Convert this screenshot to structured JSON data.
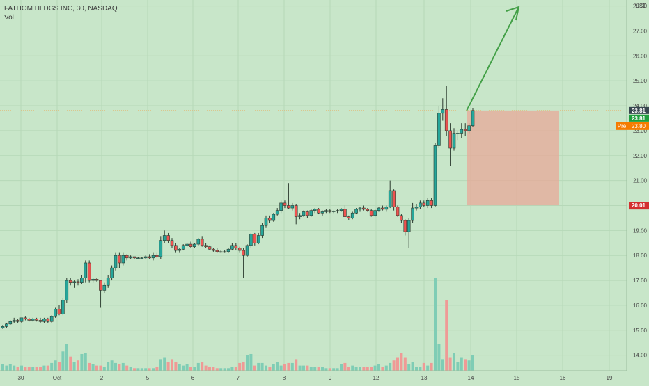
{
  "legend": {
    "title": "FATHOM HLDGS INC, 30, NASDAQ",
    "vol": "Vol"
  },
  "chart_data": {
    "type": "candlestick",
    "symbol": "FATHOM HLDGS INC",
    "interval": "30",
    "exchange": "NASDAQ",
    "currency": "USD",
    "y_ticks": [
      14.0,
      15.0,
      16.0,
      17.0,
      18.0,
      19.0,
      20.0,
      21.0,
      22.0,
      23.0,
      24.0,
      25.0,
      26.0,
      27.0,
      28.0
    ],
    "ylim": [
      13.6,
      28.1
    ],
    "x_ticks": [
      "30",
      "Oct",
      "2",
      "5",
      "6",
      "7",
      "8",
      "9",
      "12",
      "13",
      "14",
      "15",
      "16",
      "19"
    ],
    "current_price_label": "23.81",
    "current_price_label_2": "23.81",
    "pre_market_tag": "Pre",
    "pre_market_price": "23.80",
    "stop_price": "20.01",
    "position_box": {
      "top_price": 23.81,
      "bottom_price": 20.01,
      "start_bar": 123,
      "end_bar": 147
    },
    "arrow": {
      "from_bar": 123,
      "from_price": 23.81,
      "to_bar": 137,
      "to_price": 28.2
    },
    "candles": [
      [
        15.1,
        15.2,
        15.05,
        15.15,
        0.5
      ],
      [
        15.15,
        15.3,
        15.1,
        15.25,
        0.4
      ],
      [
        15.25,
        15.4,
        15.2,
        15.35,
        0.5
      ],
      [
        15.35,
        15.5,
        15.3,
        15.4,
        0.4
      ],
      [
        15.4,
        15.45,
        15.3,
        15.35,
        0.3
      ],
      [
        15.35,
        15.5,
        15.3,
        15.5,
        0.4
      ],
      [
        15.5,
        15.55,
        15.4,
        15.45,
        0.3
      ],
      [
        15.45,
        15.5,
        15.35,
        15.4,
        0.3
      ],
      [
        15.4,
        15.5,
        15.35,
        15.45,
        0.3
      ],
      [
        15.45,
        15.5,
        15.35,
        15.4,
        0.3
      ],
      [
        15.4,
        15.5,
        15.3,
        15.35,
        0.3
      ],
      [
        15.35,
        15.5,
        15.3,
        15.45,
        0.4
      ],
      [
        15.45,
        15.5,
        15.3,
        15.35,
        0.4
      ],
      [
        15.35,
        15.6,
        15.3,
        15.55,
        0.6
      ],
      [
        15.55,
        15.9,
        15.5,
        15.85,
        0.8
      ],
      [
        15.85,
        16.0,
        15.6,
        15.65,
        0.7
      ],
      [
        15.65,
        16.3,
        15.6,
        16.2,
        1.5
      ],
      [
        16.2,
        17.1,
        16.1,
        17.0,
        2.1
      ],
      [
        17.0,
        17.1,
        16.8,
        16.9,
        1.1
      ],
      [
        16.9,
        17.0,
        16.7,
        16.95,
        0.7
      ],
      [
        16.95,
        17.05,
        16.8,
        16.9,
        0.8
      ],
      [
        16.9,
        17.2,
        16.85,
        17.1,
        1.3
      ],
      [
        17.1,
        17.8,
        16.9,
        17.7,
        1.4
      ],
      [
        17.7,
        17.8,
        16.9,
        17.0,
        0.6
      ],
      [
        17.0,
        17.1,
        16.9,
        17.05,
        0.5
      ],
      [
        17.05,
        17.1,
        16.95,
        17.0,
        0.4
      ],
      [
        17.0,
        17.0,
        15.9,
        16.6,
        0.4
      ],
      [
        16.6,
        16.9,
        16.5,
        16.8,
        0.3
      ],
      [
        16.8,
        17.2,
        16.7,
        17.1,
        0.7
      ],
      [
        17.1,
        17.6,
        17.0,
        17.5,
        0.8
      ],
      [
        17.5,
        18.1,
        17.4,
        18.0,
        0.6
      ],
      [
        18.0,
        18.1,
        17.5,
        17.7,
        0.5
      ],
      [
        17.7,
        18.1,
        17.6,
        18.0,
        0.6
      ],
      [
        18.0,
        18.05,
        17.8,
        17.9,
        0.4
      ],
      [
        17.9,
        18.0,
        17.85,
        17.95,
        0.3
      ],
      [
        17.95,
        17.95,
        17.85,
        17.9,
        0.2
      ],
      [
        17.9,
        17.95,
        17.85,
        17.9,
        0.2
      ],
      [
        17.9,
        17.95,
        17.85,
        17.9,
        0.2
      ],
      [
        17.9,
        18.0,
        17.85,
        17.95,
        0.2
      ],
      [
        17.95,
        18.05,
        17.85,
        17.9,
        0.2
      ],
      [
        17.9,
        18.1,
        17.8,
        18.0,
        0.2
      ],
      [
        18.0,
        18.1,
        17.9,
        17.95,
        0.3
      ],
      [
        17.95,
        18.75,
        17.85,
        18.6,
        0.9
      ],
      [
        18.6,
        19.0,
        18.5,
        18.8,
        1.0
      ],
      [
        18.8,
        18.9,
        18.5,
        18.6,
        0.7
      ],
      [
        18.6,
        18.7,
        18.3,
        18.4,
        0.9
      ],
      [
        18.4,
        18.5,
        18.1,
        18.2,
        0.7
      ],
      [
        18.2,
        18.3,
        18.1,
        18.25,
        0.5
      ],
      [
        18.25,
        18.45,
        18.2,
        18.4,
        0.4
      ],
      [
        18.4,
        18.5,
        18.35,
        18.45,
        0.5
      ],
      [
        18.45,
        18.55,
        18.3,
        18.35,
        0.3
      ],
      [
        18.35,
        18.5,
        18.3,
        18.45,
        0.3
      ],
      [
        18.45,
        18.7,
        18.4,
        18.65,
        0.6
      ],
      [
        18.65,
        18.75,
        18.35,
        18.4,
        0.7
      ],
      [
        18.4,
        18.5,
        18.3,
        18.35,
        0.4
      ],
      [
        18.35,
        18.4,
        18.2,
        18.25,
        0.3
      ],
      [
        18.25,
        18.3,
        18.15,
        18.2,
        0.3
      ],
      [
        18.2,
        18.3,
        18.1,
        18.15,
        0.2
      ],
      [
        18.15,
        18.2,
        18.1,
        18.15,
        0.2
      ],
      [
        18.15,
        18.2,
        18.1,
        18.15,
        0.2
      ],
      [
        18.15,
        18.3,
        18.1,
        18.25,
        0.2
      ],
      [
        18.25,
        18.5,
        18.2,
        18.4,
        0.3
      ],
      [
        18.4,
        18.5,
        18.2,
        18.3,
        0.3
      ],
      [
        18.3,
        18.35,
        18.1,
        18.2,
        0.6
      ],
      [
        18.2,
        18.3,
        17.1,
        18.0,
        0.7
      ],
      [
        18.0,
        18.45,
        17.95,
        18.4,
        1.2
      ],
      [
        18.4,
        18.9,
        18.3,
        18.85,
        1.3
      ],
      [
        18.85,
        18.9,
        18.4,
        18.5,
        0.4
      ],
      [
        18.5,
        18.9,
        18.45,
        18.8,
        0.6
      ],
      [
        18.8,
        19.3,
        18.7,
        19.2,
        0.6
      ],
      [
        19.2,
        19.6,
        19.1,
        19.5,
        0.4
      ],
      [
        19.5,
        19.6,
        19.3,
        19.4,
        0.3
      ],
      [
        19.4,
        19.7,
        19.35,
        19.65,
        0.5
      ],
      [
        19.65,
        19.9,
        19.6,
        19.8,
        0.7
      ],
      [
        19.8,
        20.2,
        19.7,
        20.1,
        0.4
      ],
      [
        20.1,
        20.2,
        19.9,
        20.0,
        0.5
      ],
      [
        20.0,
        20.9,
        19.85,
        19.9,
        0.6
      ],
      [
        19.9,
        20.1,
        19.8,
        20.0,
        0.6
      ],
      [
        20.0,
        20.05,
        19.25,
        19.55,
        0.9
      ],
      [
        19.55,
        19.7,
        19.45,
        19.6,
        0.4
      ],
      [
        19.6,
        19.8,
        19.55,
        19.75,
        0.4
      ],
      [
        19.75,
        19.8,
        19.5,
        19.6,
        0.4
      ],
      [
        19.6,
        19.85,
        19.55,
        19.8,
        0.3
      ],
      [
        19.8,
        19.9,
        19.7,
        19.85,
        0.3
      ],
      [
        19.85,
        19.9,
        19.65,
        19.7,
        0.3
      ],
      [
        19.7,
        19.8,
        19.6,
        19.75,
        0.3
      ],
      [
        19.75,
        19.85,
        19.7,
        19.8,
        0.2
      ],
      [
        19.8,
        19.85,
        19.7,
        19.75,
        0.2
      ],
      [
        19.75,
        19.8,
        19.7,
        19.78,
        0.2
      ],
      [
        19.78,
        19.85,
        19.7,
        19.8,
        0.2
      ],
      [
        19.8,
        19.9,
        19.75,
        19.85,
        0.5
      ],
      [
        19.85,
        20.0,
        19.6,
        19.55,
        0.6
      ],
      [
        19.55,
        19.6,
        19.4,
        19.5,
        0.3
      ],
      [
        19.5,
        19.75,
        19.45,
        19.7,
        0.4
      ],
      [
        19.7,
        19.9,
        19.65,
        19.85,
        0.3
      ],
      [
        19.85,
        19.95,
        19.75,
        19.9,
        0.3
      ],
      [
        19.9,
        20.0,
        19.8,
        19.85,
        0.3
      ],
      [
        19.85,
        19.9,
        19.75,
        19.8,
        0.3
      ],
      [
        19.8,
        19.85,
        19.55,
        19.6,
        0.3
      ],
      [
        19.6,
        19.85,
        19.55,
        19.8,
        0.4
      ],
      [
        19.8,
        19.95,
        19.75,
        19.9,
        0.5
      ],
      [
        19.9,
        20.0,
        19.8,
        19.85,
        0.3
      ],
      [
        19.85,
        20.0,
        19.75,
        19.95,
        0.4
      ],
      [
        19.95,
        21.0,
        19.9,
        20.6,
        0.6
      ],
      [
        20.6,
        20.65,
        19.8,
        19.95,
        0.8
      ],
      [
        19.95,
        20.0,
        19.55,
        19.6,
        1.0
      ],
      [
        19.6,
        19.65,
        19.3,
        19.4,
        1.4
      ],
      [
        19.4,
        19.45,
        18.8,
        18.95,
        1.0
      ],
      [
        18.95,
        19.5,
        18.3,
        19.4,
        0.5
      ],
      [
        19.4,
        20.1,
        19.3,
        19.9,
        0.7
      ],
      [
        19.9,
        20.05,
        19.8,
        19.95,
        0.3
      ],
      [
        19.95,
        20.2,
        19.85,
        20.1,
        0.3
      ],
      [
        20.1,
        20.2,
        19.95,
        20.0,
        0.6
      ],
      [
        20.0,
        20.3,
        19.9,
        20.2,
        0.4
      ],
      [
        20.2,
        20.3,
        19.9,
        20.0,
        0.6
      ],
      [
        20.0,
        22.5,
        19.95,
        22.4,
        7.2
      ],
      [
        22.4,
        24.0,
        22.3,
        23.7,
        2.1
      ],
      [
        23.7,
        24.3,
        23.4,
        23.85,
        0.9
      ],
      [
        23.85,
        24.8,
        22.8,
        23.0,
        5.5
      ],
      [
        23.0,
        23.3,
        21.6,
        22.3,
        1.0
      ],
      [
        22.3,
        23.1,
        22.2,
        22.9,
        1.4
      ],
      [
        22.9,
        23.0,
        22.6,
        22.9,
        0.7
      ],
      [
        22.9,
        23.3,
        22.7,
        23.05,
        1.0
      ],
      [
        23.05,
        23.3,
        22.8,
        23.0,
        0.9
      ],
      [
        23.0,
        23.3,
        22.9,
        23.2,
        0.8
      ],
      [
        23.2,
        23.9,
        23.15,
        23.81,
        1.2
      ]
    ]
  }
}
